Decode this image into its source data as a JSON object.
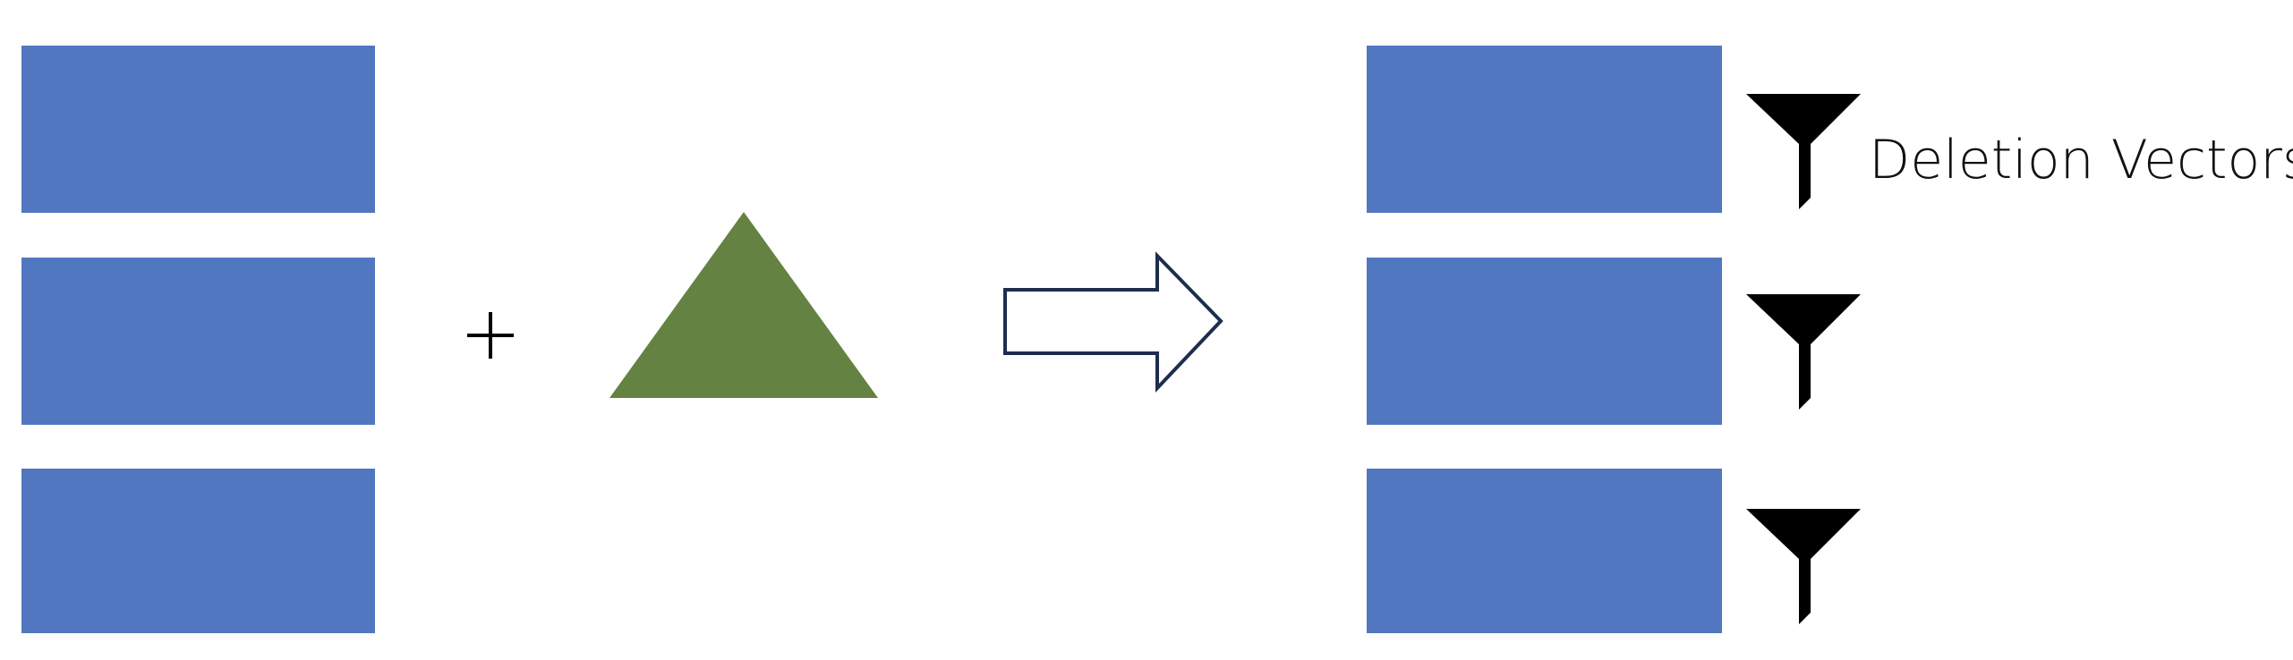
{
  "colors": {
    "block": "#5277c1",
    "triangle": "#648241",
    "arrow_outline": "#1f2d4d",
    "filter": "#000000",
    "plus": "#000000"
  },
  "icons": {
    "plus": "plus-icon",
    "arrow": "right-arrow-icon",
    "filter": "filter-funnel-icon",
    "triangle": "triangle-shape"
  },
  "labels": {
    "deletion_vectors": "Deletion Vectors"
  }
}
